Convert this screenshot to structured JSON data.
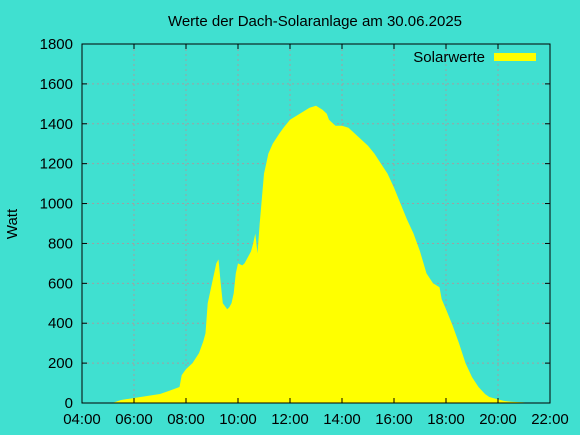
{
  "chart_data": {
    "type": "area",
    "title": "Werte der Dach-Solaranlage am 30.06.2025",
    "xlabel": "",
    "ylabel": "Watt",
    "xlim": [
      "04:00",
      "22:00"
    ],
    "ylim": [
      0,
      1800
    ],
    "x_ticks": [
      "04:00",
      "06:00",
      "08:00",
      "10:00",
      "12:00",
      "14:00",
      "16:00",
      "18:00",
      "20:00",
      "22:00"
    ],
    "y_ticks": [
      "0",
      "200",
      "400",
      "600",
      "800",
      "1000",
      "1200",
      "1400",
      "1600",
      "1800"
    ],
    "grid": true,
    "legend_position": "top-right",
    "background_color": "#40e0d0",
    "fill_color": "#ffff00",
    "series": [
      {
        "name": "Solarwerte",
        "x": [
          "05:10",
          "05:30",
          "06:00",
          "06:30",
          "07:00",
          "07:20",
          "07:45",
          "07:50",
          "08:00",
          "08:15",
          "08:30",
          "08:40",
          "08:45",
          "08:50",
          "09:00",
          "09:10",
          "09:15",
          "09:20",
          "09:25",
          "09:35",
          "09:40",
          "09:45",
          "09:50",
          "09:55",
          "10:00",
          "10:10",
          "10:15",
          "10:30",
          "10:35",
          "10:40",
          "10:45",
          "10:50",
          "11:00",
          "11:05",
          "11:10",
          "11:20",
          "11:35",
          "11:45",
          "12:00",
          "12:15",
          "12:30",
          "12:45",
          "13:00",
          "13:15",
          "13:25",
          "13:30",
          "13:40",
          "13:45",
          "14:00",
          "14:15",
          "14:30",
          "14:45",
          "15:00",
          "15:15",
          "15:30",
          "15:45",
          "16:00",
          "16:15",
          "16:30",
          "16:45",
          "17:00",
          "17:15",
          "17:30",
          "17:45",
          "17:50",
          "18:00",
          "18:15",
          "18:30",
          "18:45",
          "19:00",
          "19:15",
          "19:30",
          "19:40",
          "20:00",
          "20:15",
          "20:30",
          "21:00",
          "21:10"
        ],
        "values": [
          0,
          15,
          25,
          35,
          45,
          60,
          80,
          140,
          170,
          200,
          250,
          310,
          350,
          500,
          600,
          700,
          720,
          600,
          500,
          470,
          480,
          500,
          550,
          650,
          700,
          690,
          700,
          760,
          800,
          850,
          750,
          900,
          1150,
          1200,
          1250,
          1300,
          1350,
          1380,
          1420,
          1440,
          1460,
          1480,
          1490,
          1470,
          1450,
          1420,
          1400,
          1390,
          1390,
          1380,
          1350,
          1320,
          1290,
          1250,
          1200,
          1150,
          1080,
          1000,
          920,
          850,
          760,
          650,
          600,
          580,
          520,
          470,
          390,
          300,
          200,
          130,
          80,
          45,
          30,
          18,
          10,
          6,
          3,
          0
        ]
      }
    ]
  }
}
